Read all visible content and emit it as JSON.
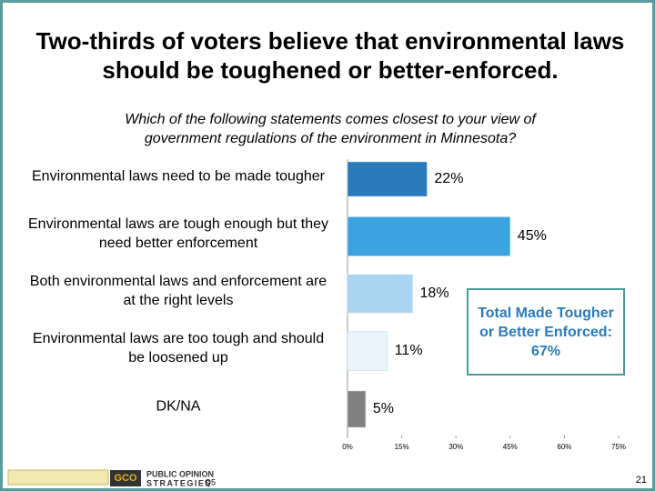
{
  "chart_data": {
    "type": "bar",
    "orientation": "horizontal",
    "title": "Two-thirds of voters believe that environmental laws should be toughened or better-enforced.",
    "subtitle": "Which of the following statements comes closest to your view of government regulations of the environment in Minnesota?",
    "categories": [
      "Environmental laws need to be made tougher",
      "Environmental laws are tough enough but they need better enforcement",
      "Both environmental laws and enforcement are at the right levels",
      "Environmental laws are too tough and should be loosened up",
      "DK/NA"
    ],
    "values": [
      22,
      45,
      18,
      11,
      5
    ],
    "value_labels": [
      "22%",
      "45%",
      "18%",
      "11%",
      "5%"
    ],
    "colors": [
      "#2a7ab9",
      "#3ba3e0",
      "#a9d5f0",
      "#e9f4fb",
      "#808080"
    ],
    "xlim": [
      0,
      75
    ],
    "xticks": [
      {
        "value": 0,
        "label": "0%"
      },
      {
        "value": 15,
        "label": "15%"
      },
      {
        "value": 30,
        "label": "30%"
      },
      {
        "value": 45,
        "label": "45%"
      },
      {
        "value": 60,
        "label": "60%"
      },
      {
        "value": 75,
        "label": "75%"
      }
    ],
    "annotation": "Total Made Tougher or Better Enforced: 67%"
  },
  "footer": {
    "question": "Q5",
    "page": "21",
    "logo_line1": "PUBLIC OPINION",
    "logo_line2": "STRATEGIES"
  }
}
